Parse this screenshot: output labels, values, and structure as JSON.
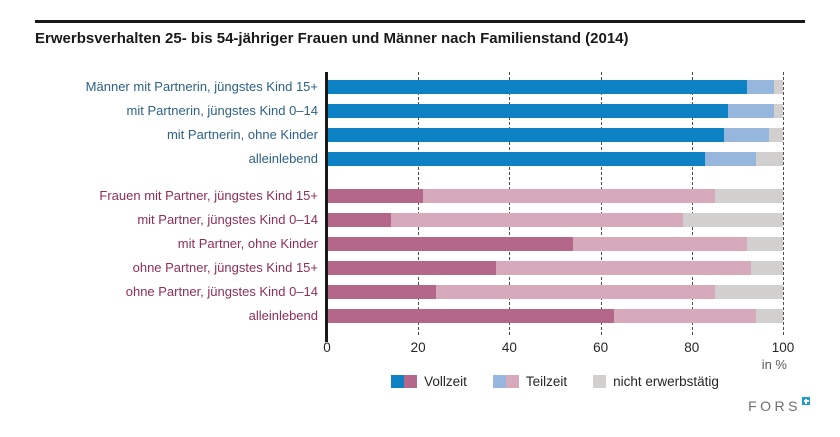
{
  "title": "Erwerbsverhalten 25- bis 54-jähriger Frauen und Männer nach Familienstand (2014)",
  "footer": {
    "logo_text": "FORS"
  },
  "chart_data": {
    "type": "bar",
    "orientation": "horizontal",
    "stacked": true,
    "unit_label": "in %",
    "xlim": [
      0,
      100
    ],
    "x_ticks": [
      0,
      20,
      40,
      60,
      80,
      100
    ],
    "grid": "dashed-vertical",
    "segment_keys": [
      "vollzeit",
      "teilzeit",
      "nicht_erwerbstaetig"
    ],
    "legend_position": "bottom-center",
    "legend": [
      {
        "label": "Vollzeit",
        "colors": [
          "#0c82c5",
          "#b5678a"
        ]
      },
      {
        "label": "Teilzeit",
        "colors": [
          "#96b6de",
          "#d6aaba"
        ]
      },
      {
        "label": "nicht erwerbstätig",
        "colors": [
          "#d1d0ce"
        ]
      }
    ],
    "groups": [
      {
        "key": "maenner",
        "name": "Männer",
        "label_color": "#2e6186",
        "colors": {
          "vollzeit": "#0c82c5",
          "teilzeit": "#96b6de",
          "nicht_erwerbstaetig": "#d1d0ce"
        },
        "rows": [
          {
            "label": "Männer mit Partnerin, jüngstes Kind 15+",
            "values": {
              "vollzeit": 92,
              "teilzeit": 6,
              "nicht_erwerbstaetig": 2
            }
          },
          {
            "label": "mit Partnerin, jüngstes Kind 0–14",
            "values": {
              "vollzeit": 88,
              "teilzeit": 10,
              "nicht_erwerbstaetig": 2
            }
          },
          {
            "label": "mit Partnerin, ohne Kinder",
            "values": {
              "vollzeit": 87,
              "teilzeit": 10,
              "nicht_erwerbstaetig": 3
            }
          },
          {
            "label": "alleinlebend",
            "values": {
              "vollzeit": 83,
              "teilzeit": 11,
              "nicht_erwerbstaetig": 6
            }
          }
        ]
      },
      {
        "key": "frauen",
        "name": "Frauen",
        "label_color": "#8f2f55",
        "colors": {
          "vollzeit": "#b5678a",
          "teilzeit": "#d6aaba",
          "nicht_erwerbstaetig": "#d1d0ce"
        },
        "rows": [
          {
            "label": "Frauen mit Partner, jüngstes Kind 15+",
            "values": {
              "vollzeit": 21,
              "teilzeit": 64,
              "nicht_erwerbstaetig": 15
            }
          },
          {
            "label": "mit Partner, jüngstes Kind 0–14",
            "values": {
              "vollzeit": 14,
              "teilzeit": 64,
              "nicht_erwerbstaetig": 22
            }
          },
          {
            "label": "mit Partner, ohne Kinder",
            "values": {
              "vollzeit": 54,
              "teilzeit": 38,
              "nicht_erwerbstaetig": 8
            }
          },
          {
            "label": "ohne Partner, jüngstes Kind 15+",
            "values": {
              "vollzeit": 37,
              "teilzeit": 56,
              "nicht_erwerbstaetig": 7
            }
          },
          {
            "label": "ohne Partner, jüngstes Kind 0–14",
            "values": {
              "vollzeit": 24,
              "teilzeit": 61,
              "nicht_erwerbstaetig": 15
            }
          },
          {
            "label": "alleinlebend",
            "values": {
              "vollzeit": 63,
              "teilzeit": 31,
              "nicht_erwerbstaetig": 6
            }
          }
        ]
      }
    ]
  }
}
